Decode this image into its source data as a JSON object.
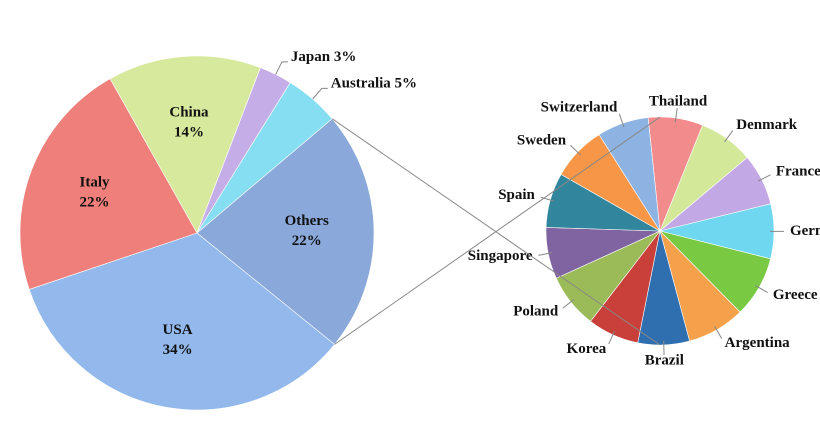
{
  "chart_data": [
    {
      "type": "pie",
      "categories": [
        "USA",
        "Italy",
        "China",
        "Japan",
        "Australia",
        "Others"
      ],
      "values": [
        34,
        22,
        14,
        3,
        5,
        22
      ],
      "value_labels": [
        "34%",
        "22%",
        "14%",
        "3%",
        "5%",
        "22%"
      ],
      "colors": [
        "#93b8ec",
        "#ee7f7a",
        "#d6e99c",
        "#c5ade8",
        "#86def3",
        "#8aa8da"
      ]
    },
    {
      "type": "pie",
      "categories": [
        "Thailand",
        "Denmark",
        "France",
        "Germany",
        "Greece",
        "Argentina",
        "Brazil",
        "Korea",
        "Poland",
        "Singapore",
        "Spain",
        "Sweden",
        "Switzerland"
      ],
      "values": [
        1.7,
        1.7,
        1.6,
        1.7,
        1.9,
        1.8,
        1.6,
        1.6,
        1.7,
        1.6,
        1.7,
        1.7,
        1.6
      ],
      "colors": [
        "#f28b8b",
        "#d4e89a",
        "#c3a8e6",
        "#6fd8f0",
        "#7ac943",
        "#f5a04a",
        "#2f6fb0",
        "#c9403a",
        "#9bbb59",
        "#8064a2",
        "#31859c",
        "#f79646",
        "#8db3e2"
      ]
    }
  ]
}
